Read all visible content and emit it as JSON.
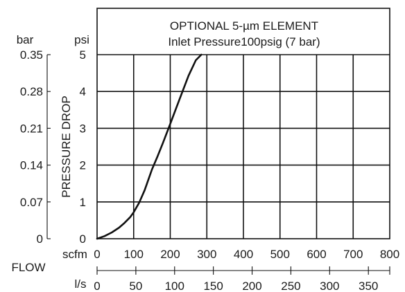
{
  "chart_data": {
    "type": "line",
    "title": "OPTIONAL 5-µm ELEMENT",
    "subtitle": "Inlet Pressure100psig (7 bar)",
    "ylabel": "PRESSURE DROP",
    "y_unit_psi": "psi",
    "y_unit_bar": "bar",
    "x_unit_scfm": "scfm",
    "x_unit_ls": "l/s",
    "xlabel": "FLOW",
    "xlim": [
      0,
      800
    ],
    "ylim": [
      0,
      5
    ],
    "grid": true,
    "psi_ticks": [
      "0",
      "1",
      "2",
      "3",
      "4",
      "5"
    ],
    "bar_ticks": [
      "0",
      "0.07",
      "0.14",
      "0.21",
      "0.28",
      "0.35"
    ],
    "scfm_ticks": [
      "0",
      "100",
      "200",
      "300",
      "400",
      "500",
      "600",
      "700",
      "800"
    ],
    "ls_ticks": [
      "0",
      "50",
      "100",
      "150",
      "200",
      "250",
      "300",
      "350"
    ],
    "series": [
      {
        "x": [
          0,
          20,
          40,
          60,
          75,
          90,
          100,
          115,
          130,
          150,
          165,
          180,
          200,
          225,
          250,
          270,
          285
        ],
        "y": [
          0,
          0.07,
          0.17,
          0.3,
          0.43,
          0.58,
          0.72,
          0.98,
          1.32,
          1.88,
          2.23,
          2.6,
          3.12,
          3.78,
          4.43,
          4.85,
          5.0
        ]
      }
    ]
  }
}
